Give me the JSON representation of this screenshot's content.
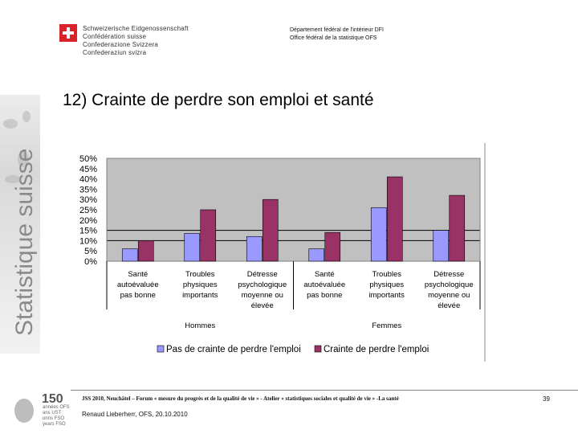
{
  "header": {
    "confederation": [
      "Schweizerische Eidgenossenschaft",
      "Confédération suisse",
      "Confederazione Svizzera",
      "Confederaziun svizra"
    ],
    "department": [
      "Département fédéral de l'intérieur DFI",
      "Office fédéral de la statistique OFS"
    ]
  },
  "sidebar": {
    "text": "Statistique suisse"
  },
  "slide": {
    "title": "12) Crainte de perdre son emploi et santé"
  },
  "chart_data": {
    "type": "bar",
    "yticks": [
      "50%",
      "45%",
      "40%",
      "35%",
      "30%",
      "25%",
      "20%",
      "15%",
      "10%",
      "5%",
      "0%"
    ],
    "ylim": [
      0,
      50
    ],
    "categories": [
      [
        "Santé",
        "autoévaluée",
        "pas bonne"
      ],
      [
        "Troubles",
        "physiques",
        "importants"
      ],
      [
        "Détresse",
        "psychologique",
        "moyenne ou",
        "élevée"
      ],
      [
        "Santé",
        "autoévaluée",
        "pas bonne"
      ],
      [
        "Troubles",
        "physiques",
        "importants"
      ],
      [
        "Détresse",
        "psychologique",
        "moyenne ou",
        "élevée"
      ]
    ],
    "groups": [
      "Hommes",
      "Femmes"
    ],
    "series": [
      {
        "name": "Pas de crainte de perdre l'emploi",
        "color": "#9999ff",
        "values": [
          6,
          13.5,
          12,
          6,
          26,
          15
        ]
      },
      {
        "name": "Crainte de perdre l'emploi",
        "color": "#993366",
        "values": [
          10,
          25,
          30,
          14,
          41,
          32
        ]
      }
    ],
    "reference_lines": [
      10,
      15
    ],
    "legend_position": "bottom"
  },
  "footer": {
    "anniversary": "150",
    "anniversary_note": [
      "années OFS",
      "ans UST",
      "onns FSO",
      "years FSO"
    ],
    "event": "JSS 2010, Neuchâtel – Forum « mesure du progrès et de la qualité de vie » - Atelier « statistiques sociales et qualité de vie » -La santé",
    "author": "Renaud Lieberherr, OFS, 20.10.2010",
    "page": "39"
  }
}
